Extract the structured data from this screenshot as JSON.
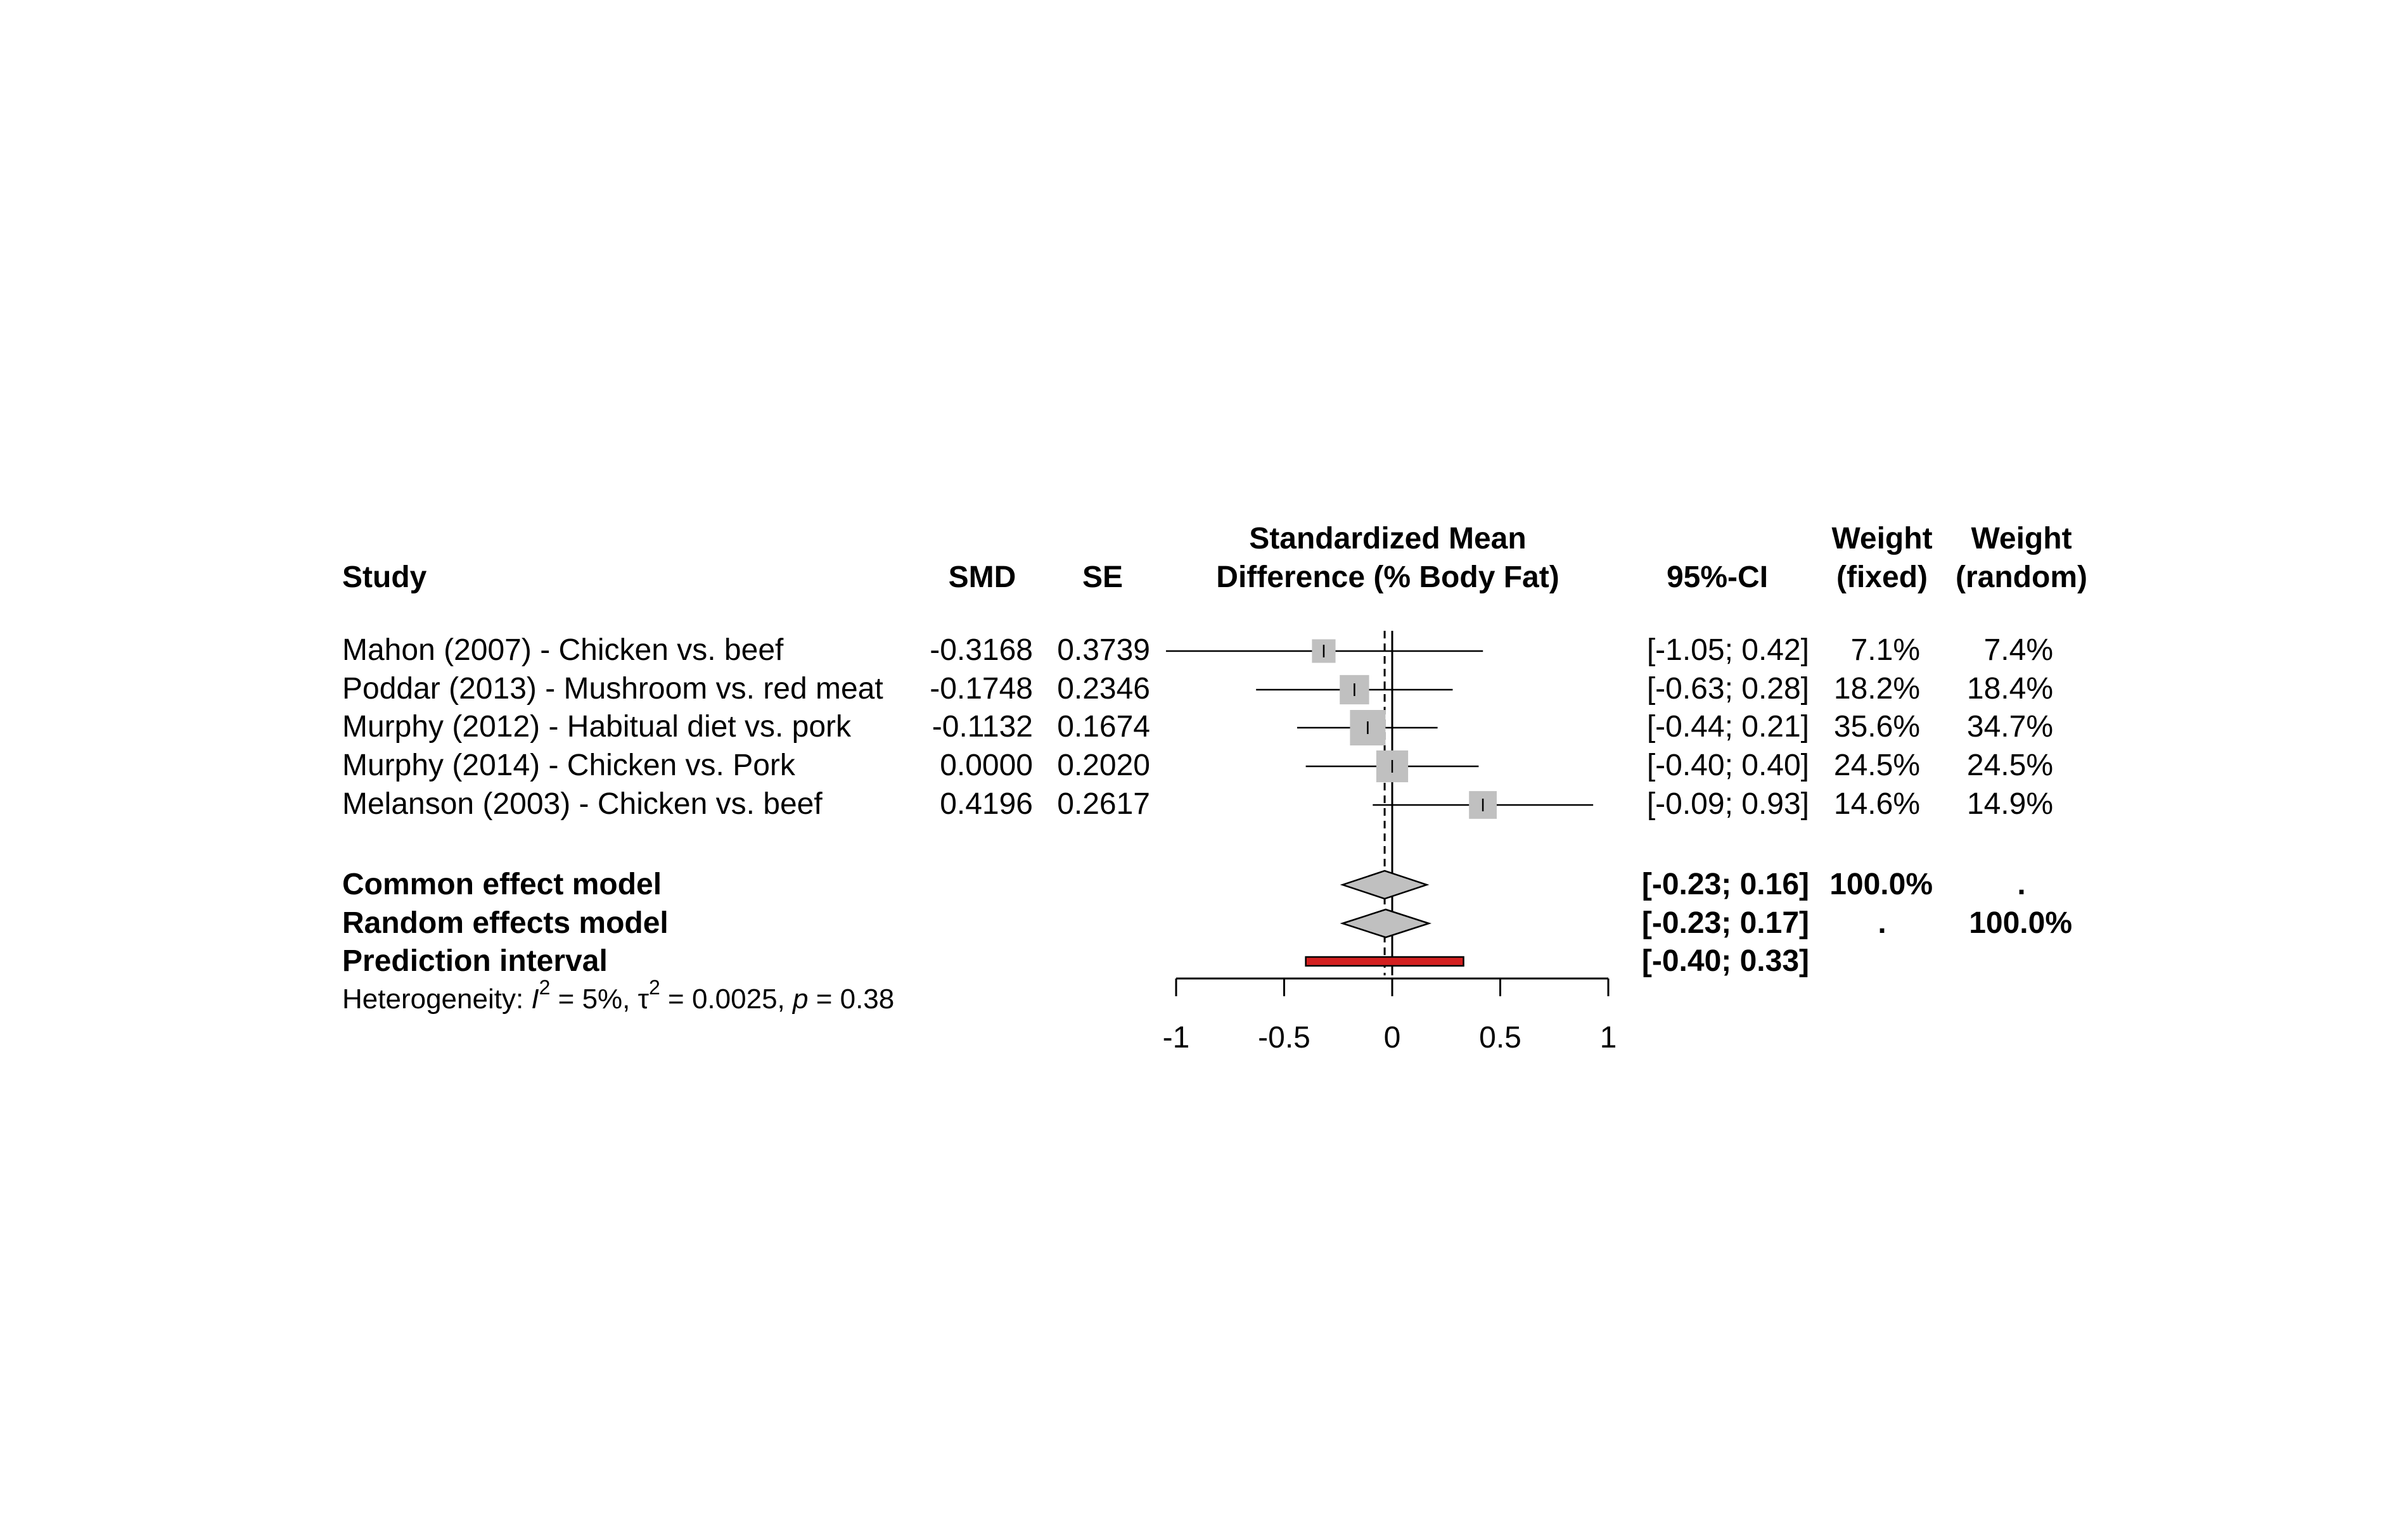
{
  "chart_data": {
    "type": "forest",
    "headers": {
      "study": "Study",
      "smd": "SMD",
      "se": "SE",
      "effect_line1": "Standardized Mean",
      "effect_line2": "Difference (% Body Fat)",
      "ci": "95%-CI",
      "wfixed_line1": "Weight",
      "wfixed_line2": "(fixed)",
      "wrandom_line1": "Weight",
      "wrandom_line2": "(random)"
    },
    "studies": [
      {
        "name": "Mahon (2007) - Chicken vs. beef",
        "smd": "-0.3168",
        "se": "0.3739",
        "ci": "[-1.05; 0.42]",
        "w_fixed": "7.1%",
        "w_random": "7.4%",
        "est": -0.3168,
        "lower": -1.05,
        "upper": 0.42,
        "weight": 7.1
      },
      {
        "name": "Poddar (2013) - Mushroom vs. red meat",
        "smd": "-0.1748",
        "se": "0.2346",
        "ci": "[-0.63; 0.28]",
        "w_fixed": "18.2%",
        "w_random": "18.4%",
        "est": -0.1748,
        "lower": -0.63,
        "upper": 0.28,
        "weight": 18.2
      },
      {
        "name": "Murphy (2012) - Habitual diet vs. pork",
        "smd": "-0.1132",
        "se": "0.1674",
        "ci": "[-0.44; 0.21]",
        "w_fixed": "35.6%",
        "w_random": "34.7%",
        "est": -0.1132,
        "lower": -0.44,
        "upper": 0.21,
        "weight": 35.6
      },
      {
        "name": "Murphy (2014) - Chicken vs. Pork",
        "smd": "0.0000",
        "se": "0.2020",
        "ci": "[-0.40; 0.40]",
        "w_fixed": "24.5%",
        "w_random": "24.5%",
        "est": 0.0,
        "lower": -0.4,
        "upper": 0.4,
        "weight": 24.5
      },
      {
        "name": "Melanson (2003) - Chicken vs. beef",
        "smd": "0.4196",
        "se": "0.2617",
        "ci": "[-0.09; 0.93]",
        "w_fixed": "14.6%",
        "w_random": "14.9%",
        "est": 0.4196,
        "lower": -0.09,
        "upper": 0.93,
        "weight": 14.6
      }
    ],
    "summary": {
      "common": {
        "label": "Common effect model",
        "ci": "[-0.23; 0.16]",
        "w_fixed": "100.0%",
        "w_random": ".",
        "est": -0.035,
        "lower": -0.23,
        "upper": 0.16
      },
      "random": {
        "label": "Random effects model",
        "ci": "[-0.23; 0.17]",
        "w_fixed": ".",
        "w_random": "100.0%",
        "est": -0.03,
        "lower": -0.23,
        "upper": 0.17
      },
      "prediction": {
        "label": "Prediction interval",
        "ci": "[-0.40; 0.33]",
        "lower": -0.4,
        "upper": 0.33
      }
    },
    "heterogeneity": {
      "prefix": "Heterogeneity: ",
      "i2_symbol": "I",
      "i2_value": " = 5%, ",
      "tau_symbol": "τ",
      "tau_value": " = 0.0025, ",
      "p_symbol": "p",
      "p_value": " = 0.38"
    },
    "x_axis": {
      "ticks": [
        -1,
        -0.5,
        0,
        0.5,
        1
      ],
      "tick_labels": [
        "-1",
        "-0.5",
        "0",
        "0.5",
        "1"
      ],
      "range": [
        -1,
        1
      ],
      "reference_line": 0,
      "summary_line": -0.035
    },
    "colors": {
      "square": "#c0c0c0",
      "diamond": "#c0c0c0",
      "prediction": "#d32020",
      "line": "#000000"
    }
  }
}
